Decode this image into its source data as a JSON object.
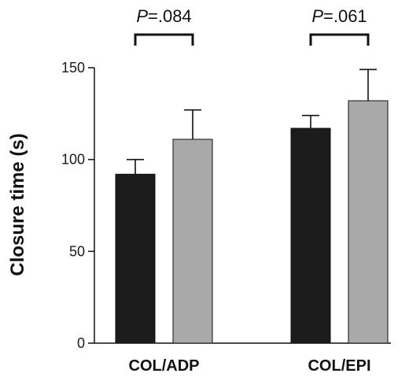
{
  "chart_data": {
    "type": "bar",
    "title": "",
    "xlabel": "",
    "ylabel": "Closure time (s)",
    "ylim": [
      0,
      150
    ],
    "yticks": [
      0,
      50,
      100,
      150
    ],
    "categories": [
      "COL/ADP",
      "COL/EPI"
    ],
    "series": [
      {
        "color": "#1c1c1c",
        "values": [
          92,
          117
        ],
        "errors": [
          8,
          7
        ]
      },
      {
        "color": "#a9a9a9",
        "values": [
          111,
          132
        ],
        "errors": [
          16,
          17
        ]
      }
    ],
    "annotations": [
      {
        "p_symbol": "P",
        "p_text": "=.084"
      },
      {
        "p_symbol": "P",
        "p_text": "=.061"
      }
    ],
    "grid": false,
    "legend": "none"
  }
}
